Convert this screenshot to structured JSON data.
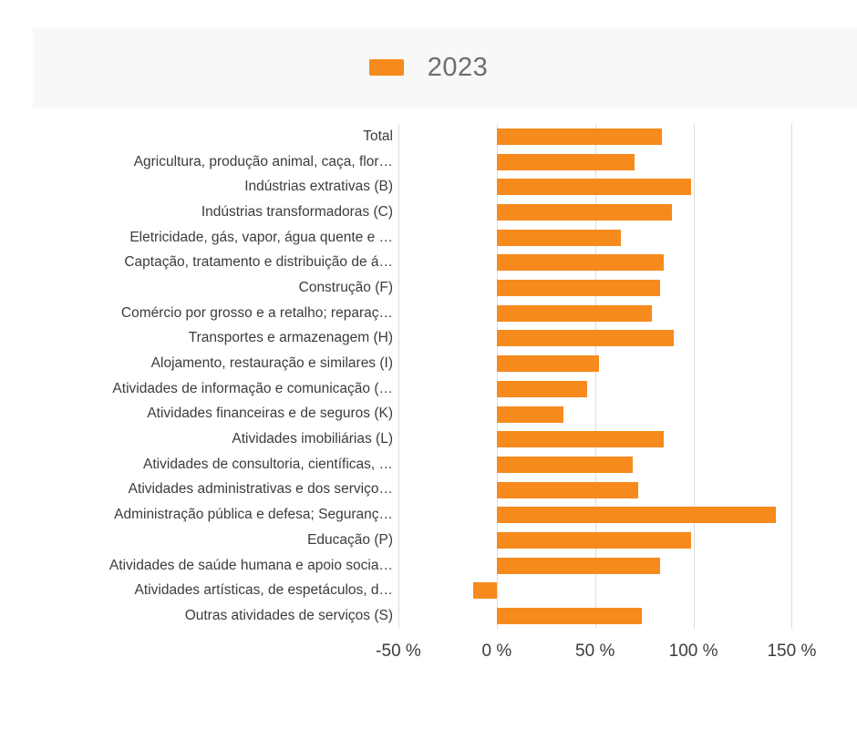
{
  "legend": {
    "label": "2023",
    "color": "#F68A1D"
  },
  "chart_data": {
    "type": "bar",
    "orientation": "horizontal",
    "title": "",
    "xlabel": "",
    "ylabel": "",
    "grid": true,
    "legend_position": "top-center",
    "categories": [
      "Total",
      "Agricultura, produção animal, caça, flor…",
      "Indústrias extrativas (B)",
      "Indústrias transformadoras (C)",
      "Eletricidade, gás, vapor, água quente e …",
      "Captação, tratamento e distribuição de á…",
      "Construção (F)",
      "Comércio por grosso e a retalho; reparaç…",
      "Transportes e armazenagem (H)",
      "Alojamento, restauração e similares (I)",
      "Atividades de informação e comunicação (…",
      "Atividades financeiras e de seguros (K)",
      "Atividades imobiliárias (L)",
      "Atividades de consultoria, científicas, …",
      "Atividades administrativas e dos serviço…",
      "Administração pública e defesa; Seguranç…",
      "Educação (P)",
      "Atividades de saúde humana e apoio socia…",
      "Atividades artísticas, de espetáculos, d…",
      "Outras atividades de serviços (S)"
    ],
    "series": [
      {
        "name": "2023",
        "color": "#F68A1D",
        "values": [
          84,
          70,
          99,
          89,
          63,
          85,
          83,
          79,
          90,
          52,
          46,
          34,
          85,
          69,
          72,
          142,
          99,
          83,
          -12,
          74
        ]
      }
    ],
    "x_axis": {
      "min": -50,
      "max": 160,
      "ticks": [
        -50,
        0,
        50,
        100,
        150
      ],
      "tick_labels": [
        "-50 %",
        "0 %",
        "50 %",
        "100 %",
        "150 %"
      ]
    }
  }
}
